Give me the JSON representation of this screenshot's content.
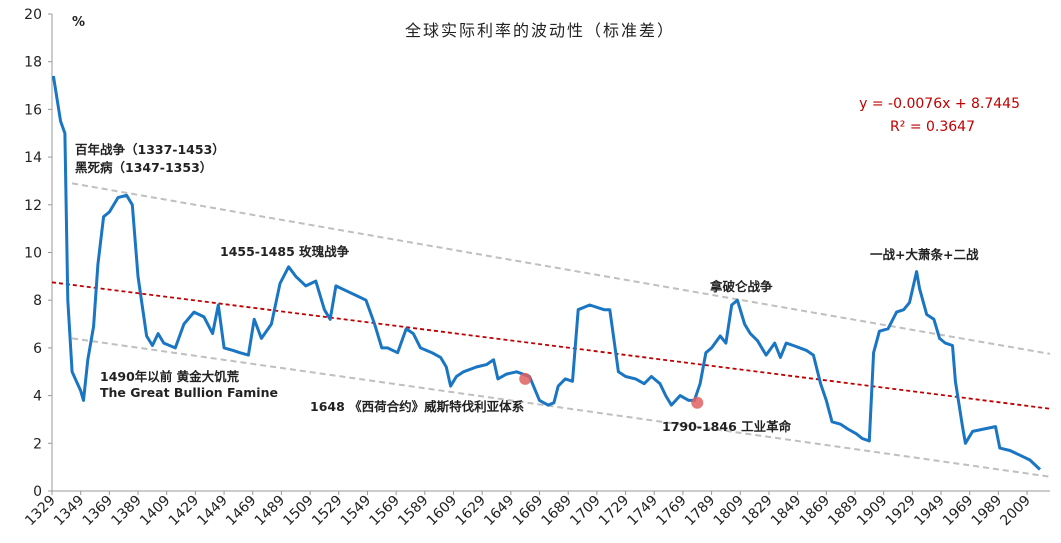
{
  "chart_data": {
    "type": "line",
    "title": "全球实际利率的波动性（标准差）",
    "y_unit": "%",
    "x": [
      1330,
      1335,
      1338,
      1340,
      1343,
      1349,
      1351,
      1354,
      1358,
      1361,
      1365,
      1369,
      1375,
      1381,
      1385,
      1389,
      1395,
      1399,
      1403,
      1407,
      1415,
      1421,
      1428,
      1435,
      1441,
      1445,
      1449,
      1455,
      1460,
      1466,
      1470,
      1475,
      1482,
      1488,
      1494,
      1499,
      1506,
      1513,
      1519,
      1523,
      1527,
      1534,
      1541,
      1548,
      1554,
      1559,
      1563,
      1570,
      1576,
      1581,
      1586,
      1594,
      1600,
      1604,
      1607,
      1611,
      1616,
      1625,
      1632,
      1637,
      1640,
      1646,
      1653,
      1662,
      1669,
      1675,
      1679,
      1682,
      1687,
      1692,
      1696,
      1704,
      1714,
      1718,
      1724,
      1729,
      1736,
      1742,
      1747,
      1753,
      1757,
      1761,
      1767,
      1773,
      1777,
      1781,
      1785,
      1789,
      1795,
      1799,
      1803,
      1807,
      1812,
      1816,
      1821,
      1827,
      1833,
      1837,
      1841,
      1846,
      1855,
      1860,
      1865,
      1869,
      1873,
      1879,
      1884,
      1890,
      1894,
      1899,
      1902,
      1906,
      1912,
      1918,
      1923,
      1927,
      1932,
      1934,
      1939,
      1944,
      1948,
      1952,
      1957,
      1959,
      1964,
      1966,
      1971,
      1979,
      1987,
      1990,
      1997,
      2004,
      2011,
      2018
    ],
    "series": [
      {
        "name": "标准差",
        "color": "#1a75c2",
        "values": [
          17.4,
          15.5,
          15,
          8,
          5,
          4.2,
          3.8,
          5.5,
          6.9,
          9.5,
          11.5,
          11.7,
          12.3,
          12.4,
          12.0,
          9,
          6.5,
          6.1,
          6.6,
          6.2,
          6.0,
          7.0,
          7.5,
          7.3,
          6.6,
          7.8,
          6.0,
          5.9,
          5.8,
          5.7,
          7.2,
          6.4,
          7.0,
          8.7,
          9.4,
          9.0,
          8.6,
          8.8,
          7.6,
          7.2,
          8.6,
          8.4,
          8.2,
          8.0,
          7.0,
          6.0,
          6.0,
          5.8,
          6.8,
          6.6,
          6.0,
          5.8,
          5.6,
          5.2,
          4.4,
          4.8,
          5.0,
          5.2,
          5.3,
          5.5,
          4.7,
          4.9,
          5.0,
          4.8,
          3.8,
          3.6,
          3.7,
          4.4,
          4.7,
          4.6,
          7.6,
          7.8,
          7.6,
          7.6,
          5.0,
          4.8,
          4.7,
          4.5,
          4.8,
          4.5,
          4.0,
          3.6,
          4.0,
          3.8,
          3.8,
          4.5,
          5.8,
          6.0,
          6.5,
          6.2,
          7.8,
          8.0,
          7.0,
          6.6,
          6.3,
          5.7,
          6.2,
          5.6,
          6.2,
          6.1,
          5.9,
          5.7,
          4.5,
          3.8,
          2.9,
          2.8,
          2.6,
          2.4,
          2.2,
          2.1,
          5.8,
          6.7,
          6.8,
          7.5,
          7.6,
          7.9,
          9.2,
          8.5,
          7.4,
          7.2,
          6.4,
          6.2,
          6.1,
          4.6,
          2.7,
          2.0,
          2.5,
          2.6,
          2.7,
          1.8,
          1.7,
          1.5,
          1.3,
          0.9
        ]
      }
    ],
    "trend_lines": [
      {
        "x": [
          1329,
          2025
        ],
        "values": [
          8.75,
          3.45
        ],
        "color": "#c00000"
      },
      {
        "x": [
          1343,
          2025
        ],
        "values": [
          12.9,
          5.75
        ],
        "color": "#bfbfbf"
      },
      {
        "x": [
          1343,
          2025
        ],
        "values": [
          6.4,
          0.6
        ],
        "color": "#bfbfbf"
      }
    ],
    "markers": {
      "x": [
        1659,
        1779
      ],
      "values": [
        4.7,
        3.7
      ],
      "color": "#e06060"
    },
    "equation": "y = -0.0076x + 8.7445",
    "r_squared": "R² = 0.3647",
    "annotations": [
      "百年战争（1337-1453）",
      "黑死病（1347-1353）",
      "1455-1485 玫瑰战争",
      "1490年以前 黄金大饥荒",
      "The Great Bullion Famine",
      "1648 《西荷合约》威斯特伐利亚体系",
      "1790-1846 工业革命",
      "拿破仑战争",
      "一战+大萧条+二战"
    ],
    "xlim": [
      1329,
      2025
    ],
    "ylim": [
      0,
      20
    ],
    "xticks": [
      1329,
      1349,
      1369,
      1389,
      1409,
      1429,
      1449,
      1469,
      1489,
      1509,
      1529,
      1549,
      1569,
      1589,
      1609,
      1629,
      1649,
      1669,
      1689,
      1709,
      1729,
      1749,
      1769,
      1789,
      1809,
      1829,
      1849,
      1869,
      1889,
      1909,
      1929,
      1949,
      1969,
      1989,
      2009
    ],
    "yticks": [
      0,
      2,
      4,
      6,
      8,
      10,
      12,
      14,
      16,
      18,
      20
    ]
  }
}
